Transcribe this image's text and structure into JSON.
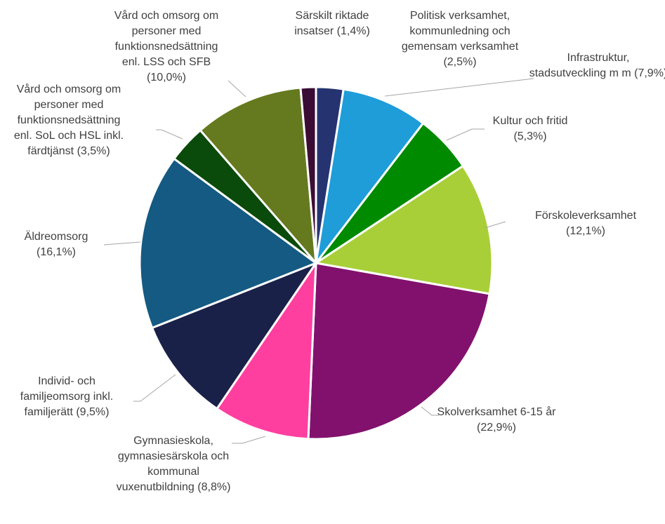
{
  "chart_data": {
    "type": "pie",
    "categories": [
      "Politisk verksamhet, kommunledning och gemensam verksamhet",
      "Infrastruktur, stadsutveckling m m",
      "Kultur och fritid",
      "Förskoleverksamhet",
      "Skolverksamhet 6-15 år",
      "Gymnasieskola, gymnasiesärskola och kommunal vuxenutbildning",
      "Individ- och familjeomsorg inkl. familjerätt",
      "Äldreomsorg",
      "Vård och omsorg om personer med funktionsnedsättning enl. SoL och HSL inkl. färdtjänst",
      "Vård och omsorg om personer med funktionsnedsättning enl. LSS och SFB",
      "Särskilt riktade insatser"
    ],
    "values": [
      2.5,
      7.9,
      5.3,
      12.1,
      22.9,
      8.8,
      9.5,
      16.1,
      3.5,
      10.0,
      1.4
    ],
    "value_labels": [
      "(2,5%)",
      "(7,9%)",
      "(5,3%)",
      "(12,1%)",
      "(22,9%)",
      "(8,8%)",
      "(9,5%)",
      "(16,1%)",
      "(3,5%)",
      "(10,0%)",
      "(1,4%)"
    ],
    "colors": [
      "#253470",
      "#1e9dd8",
      "#008a00",
      "#a8cf38",
      "#82116e",
      "#ff3fa0",
      "#1a2148",
      "#155a82",
      "#0a4a0a",
      "#657a1e",
      "#3b0d35"
    ]
  }
}
